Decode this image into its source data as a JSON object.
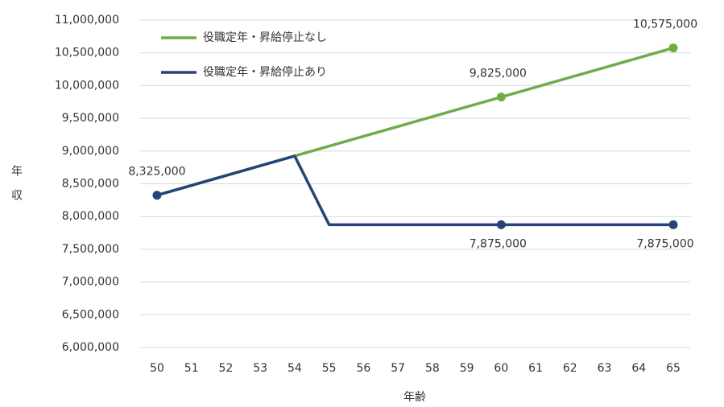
{
  "chart_data": {
    "type": "line",
    "ylabel": "年収",
    "xlabel": "年齢",
    "x": [
      50,
      51,
      52,
      53,
      54,
      55,
      56,
      57,
      58,
      59,
      60,
      61,
      62,
      63,
      64,
      65
    ],
    "series": [
      {
        "name": "役職定年・昇給停止なし",
        "color": "#70ad47",
        "values": [
          8325000,
          8475000,
          8625000,
          8775000,
          8925000,
          9075000,
          9225000,
          9375000,
          9525000,
          9675000,
          9825000,
          9975000,
          10125000,
          10275000,
          10425000,
          10575000
        ],
        "value_labels": [
          null,
          null,
          null,
          null,
          null,
          null,
          null,
          null,
          null,
          null,
          "9,825,000",
          null,
          null,
          null,
          null,
          "10,575,000"
        ]
      },
      {
        "name": "役職定年・昇給停止あり",
        "color": "#264478",
        "values": [
          8325000,
          8475000,
          8625000,
          8775000,
          8925000,
          7875000,
          7875000,
          7875000,
          7875000,
          7875000,
          7875000,
          7875000,
          7875000,
          7875000,
          7875000,
          7875000
        ],
        "value_labels": [
          "8,325,000",
          null,
          null,
          null,
          null,
          null,
          null,
          null,
          null,
          null,
          "7,875,000",
          null,
          null,
          null,
          null,
          "7,875,000"
        ]
      }
    ],
    "xlim": [
      49.5,
      65.5
    ],
    "xticks": [
      50,
      51,
      52,
      53,
      54,
      55,
      56,
      57,
      58,
      59,
      60,
      61,
      62,
      63,
      64,
      65
    ],
    "ylim": [
      6000000,
      11000000
    ],
    "yticks": [
      {
        "value": 6000000,
        "label": "6,000,000"
      },
      {
        "value": 6500000,
        "label": "6,500,000"
      },
      {
        "value": 7000000,
        "label": "7,000,000"
      },
      {
        "value": 7500000,
        "label": "7,500,000"
      },
      {
        "value": 8000000,
        "label": "8,000,000"
      },
      {
        "value": 8500000,
        "label": "8,500,000"
      },
      {
        "value": 9000000,
        "label": "9,000,000"
      },
      {
        "value": 9500000,
        "label": "9,500,000"
      },
      {
        "value": 10000000,
        "label": "10,000,000"
      },
      {
        "value": 10500000,
        "label": "10,500,000"
      },
      {
        "value": 11000000,
        "label": "11,000,000"
      }
    ],
    "grid": true,
    "legend": "upper left"
  }
}
